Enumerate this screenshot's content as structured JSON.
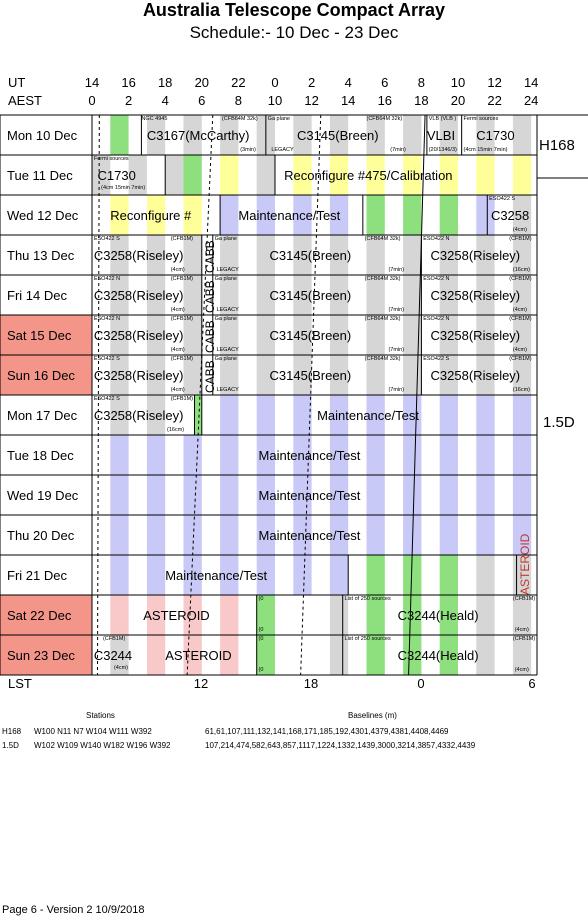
{
  "header": {
    "title": "Australia Telescope Compact Array",
    "subtitle": "Schedule:- 10 Dec - 23 Dec"
  },
  "axes": {
    "ut_label": "UT",
    "aest_label": "AEST",
    "lst_label": "LST",
    "ut_ticks": [
      "14",
      "16",
      "18",
      "20",
      "22",
      "0",
      "2",
      "4",
      "6",
      "8",
      "10",
      "12",
      "14"
    ],
    "aest_ticks": [
      "0",
      "2",
      "4",
      "6",
      "8",
      "10",
      "12",
      "14",
      "16",
      "18",
      "20",
      "22",
      "24"
    ],
    "lst_ticks": [
      "12",
      "18",
      "0",
      "6"
    ]
  },
  "configs": [
    "H168",
    "1.5D"
  ],
  "days": [
    {
      "label": "Mon  10 Dec",
      "weekend": false
    },
    {
      "label": "Tue   11 Dec",
      "weekend": false
    },
    {
      "label": "Wed  12 Dec",
      "weekend": false
    },
    {
      "label": "Thu   13 Dec",
      "weekend": false
    },
    {
      "label": "Fri    14 Dec",
      "weekend": false
    },
    {
      "label": "Sat   15 Dec",
      "weekend": true
    },
    {
      "label": "Sun   16 Dec",
      "weekend": true
    },
    {
      "label": "Mon  17 Dec",
      "weekend": false
    },
    {
      "label": "Tue   18 Dec",
      "weekend": false
    },
    {
      "label": "Wed  19 Dec",
      "weekend": false
    },
    {
      "label": "Thu   20 Dec",
      "weekend": false
    },
    {
      "label": "Fri    21 Dec",
      "weekend": false
    },
    {
      "label": "Sat   22 Dec",
      "weekend": true
    },
    {
      "label": "Sun   23 Dec",
      "weekend": true
    }
  ],
  "labels": {
    "r0": {
      "c3167": "C3167(McCarthy)",
      "ngc": "NGC 4945",
      "cfb1": "(CFB64M 32k)",
      "c3145": "C3145(Breen)",
      "gaplane": "Ga plane",
      "cfb2": "(CFB64M 32k)",
      "legacy": "LEGACY",
      "m3": "(3min)",
      "m7": "(7min)",
      "vlbi": "VLBI",
      "vlbsm": "VLB (VLB )",
      "vlbcode": "(20/1346/3)",
      "c1730": "C1730",
      "fermi": "Fermi sources",
      "fermimin": "(4cm 15min 7min)"
    },
    "r1": {
      "fermi": "Fermi sources",
      "c1730": "C1730",
      "fermimin": "(4cm 15min 7min)",
      "reconf": "Reconfigure #475/Calibration"
    },
    "r2": {
      "reconf": "Reconfigure #",
      "maint": "Maintenance/Test",
      "eso": "ESO422 S",
      "c3258": "C3258",
      "cm4": "(4cm)"
    },
    "r3": {
      "eso": "ESO422 S",
      "cfb1m": "(CFB1M)",
      "c3258": "C3258(Riseley)",
      "cm4": "(4cm)",
      "cabb": "CABB",
      "gaplane": "Ga plane",
      "cfb64": "(CFB64M 32k)",
      "legacy": "LEGACY",
      "m7": "(7min)",
      "c3145": "C3145(Breen)",
      "eson": "ESO422 N",
      "cfb1mb": "(CFB1M)",
      "c3258b": "C3258(Riseley)",
      "cm16": "(16cm)"
    },
    "r4": {
      "eso": "ESO422 N",
      "cfb1m": "(CFB1M)",
      "c3258": "C3258(Riseley)",
      "cm16": "(16cm)",
      "cabb": "CABB",
      "gaplane": "Ga plane",
      "cfb64": "(CFB64M 32k)",
      "legacy": "LEGACY",
      "m7": "(7min)",
      "c3145": "C3145(Breen)",
      "eson": "ESO422 N",
      "cfb1mb": "(CFB1M)",
      "c3258b": "C3258(Riseley)",
      "cm4": "(4cm)"
    },
    "r5": {
      "eso": "ESO422 N",
      "cfb1m": "(CFB1M)",
      "c3258": "C3258(Riseley)",
      "cm4": "(4cm)",
      "cabb": "CABB",
      "gaplane": "Ga plane",
      "cfb64": "(CFB64M 32k)",
      "legacy": "LEGACY",
      "m7": "(7min)",
      "c3145": "C3145(Breen)",
      "eson": "ESO422 N",
      "cfb1mb": "(CFB1M)",
      "c3258b": "C3258(Riseley)",
      "cm4b": "(4cm)"
    },
    "r6": {
      "eso": "ESO422 S",
      "cfb1m": "(CFB1M)",
      "c3258": "C3258(Riseley)",
      "cm4": "(4cm)",
      "cabb": "CABB",
      "gaplane": "Ga plane",
      "cfb64": "(CFB64M 32k)",
      "legacy": "LEGACY",
      "m7": "(7min)",
      "c3145": "C3145(Breen)",
      "eson": "ESO422 S",
      "cfb1mb": "(CFB1M)",
      "c3258b": "C3258(Riseley)",
      "cm16": "(16cm)"
    },
    "r7": {
      "eso": "ESO422 S",
      "cfb1m": "(CFB1M)",
      "c3258": "C3258(Riseley)",
      "cm16": "(16cm)",
      "maint": "Maintenance/Test"
    },
    "r8": {
      "maint": "Maintenance/Test"
    },
    "r9": {
      "maint": "Maintenance/Test"
    },
    "r10": {
      "maint": "Maintenance/Test"
    },
    "r11": {
      "maint": "Maintenance/Test",
      "asteroid": "ASTEROID"
    },
    "r12": {
      "asteroid": "ASTEROID",
      "zero1": "(0",
      "zero2": "(0",
      "list": "List of 250 sources",
      "cfb1m": "(CFB1M)",
      "c3244": "C3244(Heald)",
      "cm4": "(4cm)"
    },
    "r13": {
      "cfb1m": "(CFB1M)",
      "c3244": "C3244",
      "cm4": "(4cm)",
      "asteroid": "ASTEROID",
      "zero1": "(0",
      "zero2": "(0",
      "list": "List of 250 sources",
      "cfb1mb": "(CFB1M)",
      "c3244b": "C3244(Heald)",
      "cm4b": "(4cm)"
    }
  },
  "legend": {
    "stations_title": "Stations",
    "baselines_title": "Baselines (m)",
    "rows": [
      {
        "config": "H168",
        "stations": "W100  N11  N7  W104  W111  W392",
        "baselines": "61,61,107,111,132,141,168,171,185,192,4301,4379,4381,4408,4469"
      },
      {
        "config": "1.5D",
        "stations": "W102  W109  W140  W182  W196  W392",
        "baselines": "107,214,474,582,643,857,1117,1224,1332,1439,3000,3214,3857,4332,4439"
      }
    ]
  },
  "footer": "Page 6 - Version 2  10/9/2018",
  "colors": {
    "green": "#8ee07f",
    "blue": "#c9c9f7",
    "yellow": "#ffff99",
    "grey": "#d6d6d6",
    "pink": "#f9c9c9",
    "weekend": "#f4958a"
  }
}
